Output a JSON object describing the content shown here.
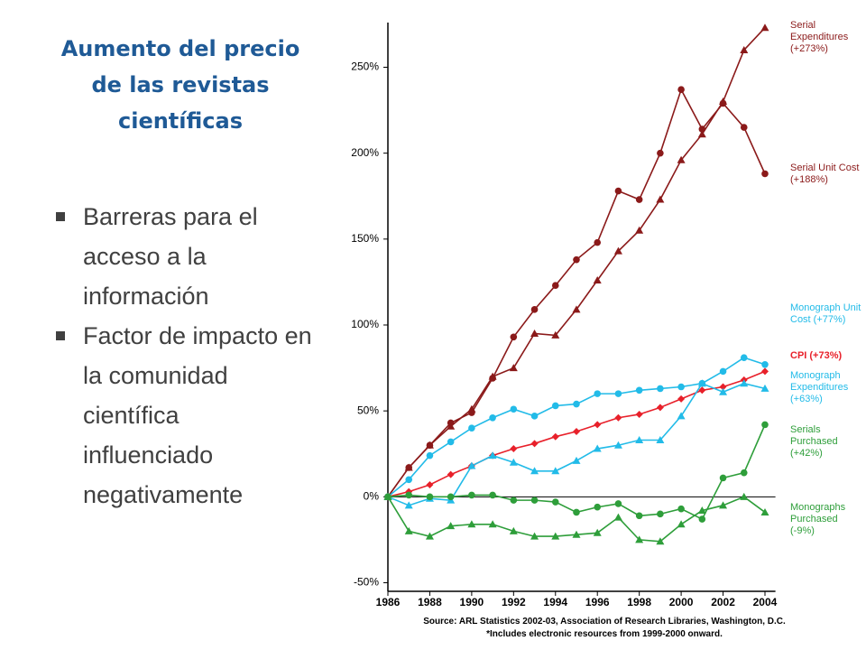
{
  "slide": {
    "title": "Aumento del precio de las revistas científicas",
    "bullets": [
      "Barreras para el acceso a la información",
      "Factor de impacto en la comunidad científica influenciado negativamente"
    ]
  },
  "chart_data": {
    "type": "line",
    "x": [
      1986,
      1987,
      1988,
      1989,
      1990,
      1991,
      1992,
      1993,
      1994,
      1995,
      1996,
      1997,
      1998,
      1999,
      2000,
      2001,
      2002,
      2003,
      2004
    ],
    "xlim": [
      1986,
      2004.5
    ],
    "xticks": [
      1986,
      1988,
      1990,
      1992,
      1994,
      1996,
      1998,
      2000,
      2002,
      2004
    ],
    "ylim": [
      -55,
      276
    ],
    "yticks": [
      {
        "value": -50,
        "label": "-50%"
      },
      {
        "value": 0,
        "label": "0%"
      },
      {
        "value": 50,
        "label": "50%"
      },
      {
        "value": 100,
        "label": "100%"
      },
      {
        "value": 150,
        "label": "150%"
      },
      {
        "value": 200,
        "label": "200%"
      },
      {
        "value": 250,
        "label": "250%"
      }
    ],
    "grid": false,
    "series": [
      {
        "name": "Serial Expenditures (+273%)",
        "color": "#8b1a1a",
        "marker": "triangle",
        "values": [
          0,
          17,
          30,
          41,
          51,
          70,
          75,
          95,
          94,
          109,
          126,
          143,
          155,
          173,
          196,
          211,
          230,
          260,
          273
        ]
      },
      {
        "name": "Serial Unit Cost (+188%)",
        "color": "#8b1a1a",
        "marker": "circle",
        "values": [
          0,
          17,
          30,
          43,
          49,
          69,
          93,
          109,
          123,
          138,
          148,
          178,
          173,
          200,
          237,
          214,
          229,
          215,
          188
        ]
      },
      {
        "name": "Monograph Unit Cost (+77%)",
        "color": "#22bbe8",
        "marker": "circle",
        "values": [
          0,
          10,
          24,
          32,
          40,
          46,
          51,
          47,
          53,
          54,
          60,
          60,
          62,
          63,
          64,
          66,
          73,
          81,
          77
        ]
      },
      {
        "name": "CPI (+73%)",
        "color": "#e8202a",
        "marker": "diamond",
        "values": [
          0,
          3,
          7,
          13,
          18,
          24,
          28,
          31,
          35,
          38,
          42,
          46,
          48,
          52,
          57,
          62,
          64,
          68,
          73
        ]
      },
      {
        "name": "Monograph Expenditures (+63%)",
        "color": "#22bbe8",
        "marker": "triangle",
        "values": [
          0,
          -5,
          -1,
          -2,
          18,
          24,
          20,
          15,
          15,
          21,
          28,
          30,
          33,
          33,
          47,
          66,
          61,
          66,
          63
        ]
      },
      {
        "name": "Serials Purchased (+42%)",
        "color": "#2e9e3a",
        "marker": "circle",
        "values": [
          0,
          1,
          0,
          0,
          1,
          1,
          -2,
          -2,
          -3,
          -9,
          -6,
          -4,
          -11,
          -10,
          -7,
          -13,
          11,
          14,
          42
        ]
      },
      {
        "name": "Monographs Purchased (-9%)",
        "color": "#2e9e3a",
        "marker": "triangle",
        "values": [
          0,
          -20,
          -23,
          -17,
          -16,
          -16,
          -20,
          -23,
          -23,
          -22,
          -21,
          -12,
          -25,
          -26,
          -16,
          -8,
          -5,
          0,
          -9
        ]
      }
    ],
    "source": "Source: ARL Statistics 2002-03, Association of Research Libraries, Washington, D.C.",
    "note": "*Includes electronic resources from 1999-2000 onward."
  }
}
